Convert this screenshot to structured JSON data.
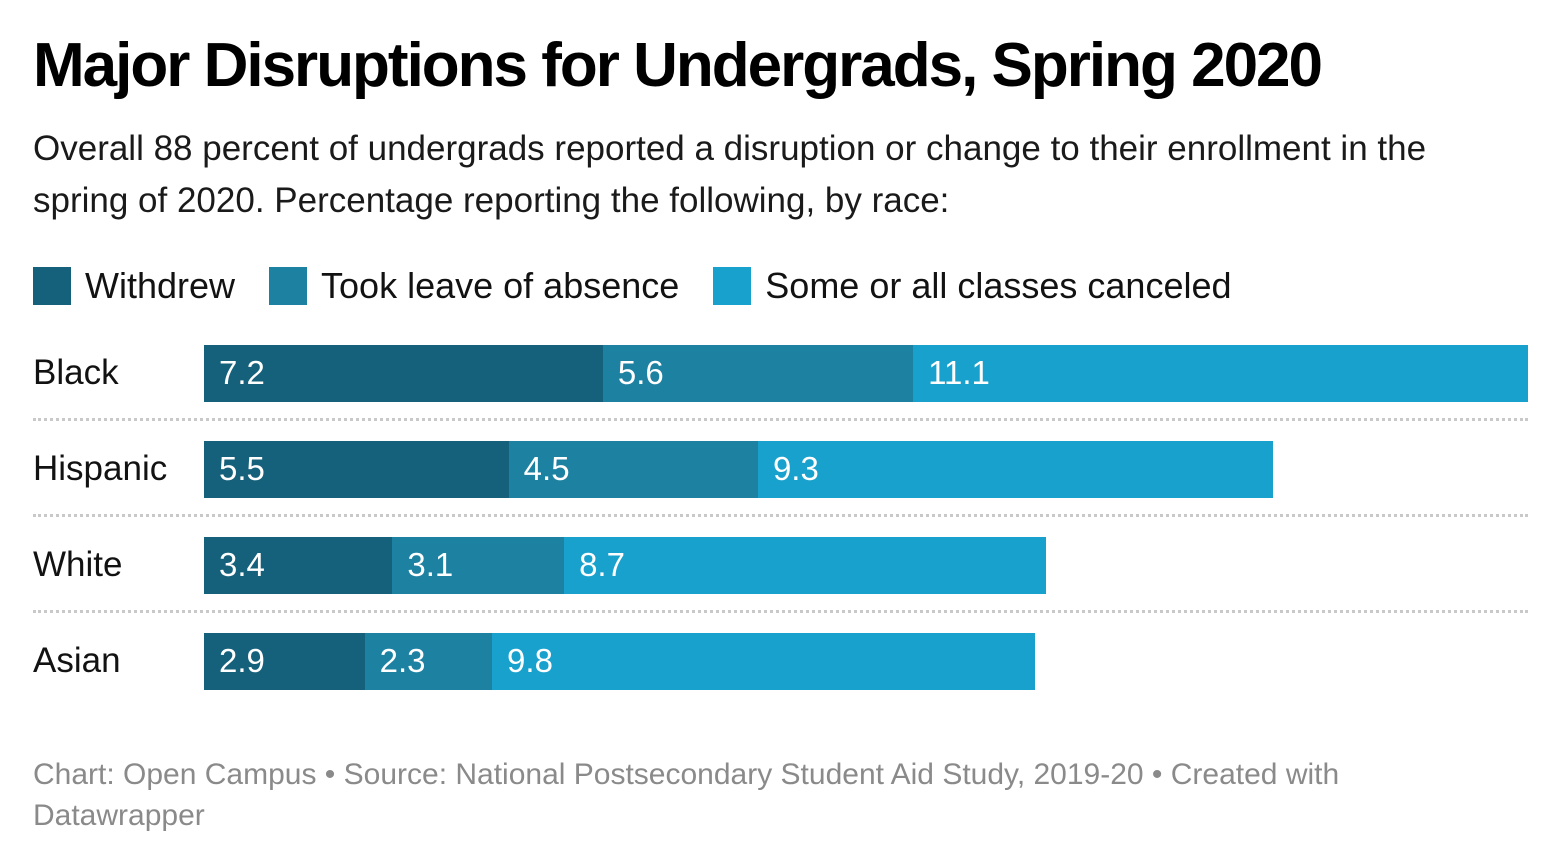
{
  "header": {
    "title": "Major Disruptions for Undergrads, Spring 2020",
    "subtitle": "Overall 88 percent of undergrads reported a disruption or change to their enrollment in the spring of 2020. Percentage reporting the following, by race:"
  },
  "legend": [
    {
      "label": "Withdrew",
      "color": "#15607a"
    },
    {
      "label": "Took leave of absence",
      "color": "#1d81a2"
    },
    {
      "label": "Some or all classes canceled",
      "color": "#18a1cd"
    }
  ],
  "chart_data": {
    "type": "bar",
    "orientation": "horizontal",
    "stacked": true,
    "title": "Major Disruptions for Undergrads, Spring 2020",
    "categories": [
      "Black",
      "Hispanic",
      "White",
      "Asian"
    ],
    "series": [
      {
        "name": "Withdrew",
        "color": "#15607a",
        "values": [
          7.2,
          5.5,
          3.4,
          2.9
        ]
      },
      {
        "name": "Took leave of absence",
        "color": "#1d81a2",
        "values": [
          5.6,
          4.5,
          3.1,
          2.3
        ]
      },
      {
        "name": "Some or all classes canceled",
        "color": "#18a1cd",
        "values": [
          11.1,
          9.3,
          8.7,
          9.8
        ]
      }
    ],
    "totals": {
      "Black": 23.9,
      "Hispanic": 19.3,
      "White": 15.2,
      "Asian": 15.0
    },
    "xlim": [
      0,
      23.9
    ],
    "grid": false,
    "value_labels": true,
    "value_label_color": "#ffffff",
    "legend_position": "top",
    "separator_style": "dotted"
  },
  "footer": {
    "text": "Chart: Open Campus • Source: National Postsecondary Student Aid Study, 2019-20 • Created with Datawrapper"
  },
  "colors": {
    "background": "#ffffff",
    "title_text": "#000000",
    "body_text": "#1a1a1a",
    "separator": "#c9c9c9",
    "footer_text": "#8a8a8a"
  }
}
